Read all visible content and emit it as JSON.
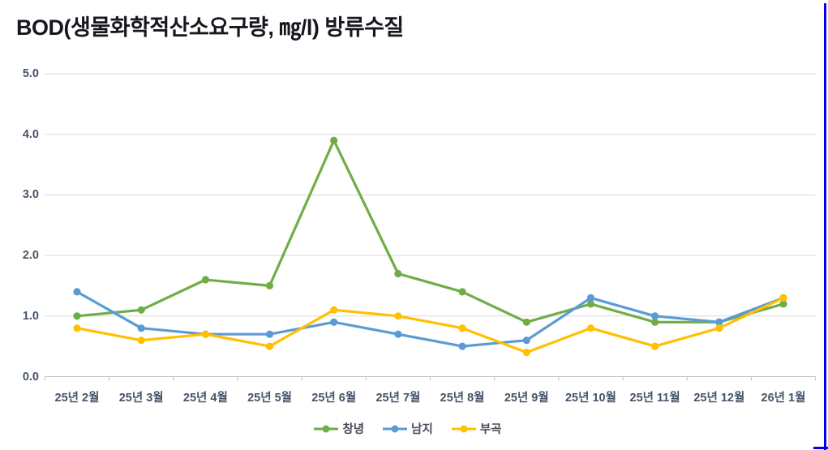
{
  "page": {
    "background": "#ffffff",
    "selection_border_color": "#0000ee"
  },
  "chart_data": {
    "type": "line",
    "title": "BOD(생물화학적산소요구량, ㎎/l) 방류수질",
    "categories": [
      "25년 2월",
      "25년 3월",
      "25년 4월",
      "25년 5월",
      "25년 6월",
      "25년 7월",
      "25년 8월",
      "25년 9월",
      "25년 10월",
      "25년 11월",
      "25년 12월",
      "26년 1월"
    ],
    "series": [
      {
        "name": "창녕",
        "color": "#70ad47",
        "values": [
          1.0,
          1.1,
          1.6,
          1.5,
          3.9,
          1.7,
          1.4,
          0.9,
          1.2,
          0.9,
          0.9,
          1.2
        ]
      },
      {
        "name": "남지",
        "color": "#5b9bd5",
        "values": [
          1.4,
          0.8,
          0.7,
          0.7,
          0.9,
          0.7,
          0.5,
          0.6,
          1.3,
          1.0,
          0.9,
          1.3
        ]
      },
      {
        "name": "부곡",
        "color": "#ffc000",
        "values": [
          0.8,
          0.6,
          0.7,
          0.5,
          1.1,
          1.0,
          0.8,
          0.4,
          0.8,
          0.5,
          0.8,
          1.3
        ]
      }
    ],
    "xlabel": "",
    "ylabel": "",
    "ylim": [
      0.0,
      5.0
    ],
    "ytick_step": 1.0,
    "ytick_labels": [
      "0.0",
      "1.0",
      "2.0",
      "3.0",
      "4.0",
      "5.0"
    ],
    "grid": true,
    "gridline_color": "#d9d9d9",
    "axis_line_color": "#bfbfbf",
    "marker": "circle",
    "legend_position": "bottom"
  }
}
